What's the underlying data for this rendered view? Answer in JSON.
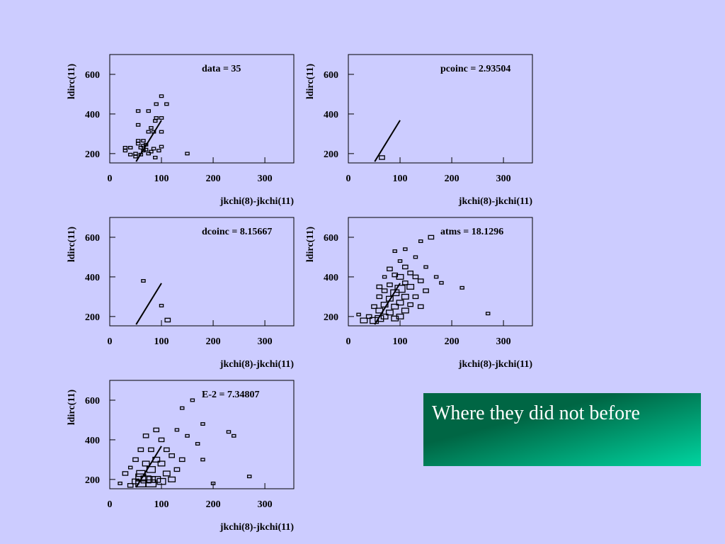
{
  "chart_data": [
    {
      "type": "scatter",
      "title": "data = 35",
      "xlabel": "jkchi(8)-jkchi(11)",
      "ylabel": "ldirc(11)",
      "xlim": [
        0,
        356
      ],
      "ylim": [
        153,
        700
      ],
      "xticks": [
        0,
        100,
        200,
        300
      ],
      "yticks": [
        200,
        400,
        600
      ],
      "line_x": [
        51,
        100
      ],
      "line_y": [
        160,
        368
      ],
      "x": [
        30,
        30,
        40,
        40,
        50,
        55,
        55,
        55,
        55,
        60,
        65,
        65,
        70,
        75,
        75,
        75,
        80,
        85,
        85,
        88,
        90,
        90,
        100,
        100,
        100,
        100,
        110,
        150,
        88,
        65,
        70,
        50,
        80,
        95,
        60
      ],
      "y": [
        230,
        215,
        230,
        195,
        200,
        265,
        250,
        345,
        415,
        195,
        265,
        240,
        220,
        310,
        200,
        415,
        210,
        225,
        310,
        365,
        380,
        450,
        310,
        380,
        235,
        490,
        450,
        200,
        180,
        215,
        245,
        185,
        330,
        215,
        230
      ],
      "sizes": [
        1,
        1,
        1,
        1,
        1,
        1,
        1,
        1,
        1,
        1,
        1,
        1,
        1,
        1,
        1,
        1,
        1,
        1,
        1,
        1,
        1,
        1,
        1,
        1,
        1,
        1,
        1,
        1,
        1,
        1,
        1,
        1,
        1,
        1,
        1
      ]
    },
    {
      "type": "scatter",
      "title": "pcoinc = 2.93504",
      "xlabel": "jkchi(8)-jkchi(11)",
      "ylabel": "ldirc(11)",
      "xlim": [
        0,
        356
      ],
      "ylim": [
        153,
        700
      ],
      "xticks": [
        0,
        100,
        200,
        300
      ],
      "yticks": [
        200,
        400,
        600
      ],
      "line_x": [
        51,
        100
      ],
      "line_y": [
        160,
        368
      ],
      "x": [
        65
      ],
      "y": [
        180
      ],
      "sizes": [
        2
      ]
    },
    {
      "type": "scatter",
      "title": "dcoinc = 8.15667",
      "xlabel": "jkchi(8)-jkchi(11)",
      "ylabel": "ldirc(11)",
      "xlim": [
        0,
        356
      ],
      "ylim": [
        153,
        700
      ],
      "xticks": [
        0,
        100,
        200,
        300
      ],
      "yticks": [
        200,
        400,
        600
      ],
      "line_x": [
        51,
        100
      ],
      "line_y": [
        160,
        368
      ],
      "x": [
        65,
        100,
        112
      ],
      "y": [
        380,
        255,
        182
      ],
      "sizes": [
        1,
        1,
        2
      ]
    },
    {
      "type": "scatter",
      "title": "atms = 18.1296",
      "xlabel": "jkchi(8)-jkchi(11)",
      "ylabel": "ldirc(11)",
      "xlim": [
        0,
        356
      ],
      "ylim": [
        153,
        700
      ],
      "xticks": [
        0,
        100,
        200,
        300
      ],
      "yticks": [
        200,
        400,
        600
      ],
      "line_x": [
        51,
        100
      ],
      "line_y": [
        160,
        368
      ],
      "x": [
        30,
        40,
        50,
        50,
        60,
        60,
        60,
        70,
        70,
        70,
        70,
        80,
        80,
        80,
        80,
        90,
        90,
        90,
        90,
        100,
        100,
        100,
        100,
        100,
        110,
        110,
        110,
        110,
        120,
        120,
        120,
        130,
        130,
        130,
        140,
        140,
        150,
        150,
        160,
        170,
        180,
        220,
        270,
        60,
        90,
        110,
        140,
        20
      ],
      "y": [
        180,
        200,
        180,
        250,
        190,
        230,
        300,
        200,
        260,
        330,
        400,
        220,
        290,
        360,
        440,
        190,
        250,
        320,
        410,
        200,
        270,
        340,
        400,
        480,
        230,
        300,
        370,
        450,
        260,
        350,
        420,
        300,
        400,
        500,
        250,
        380,
        330,
        450,
        600,
        400,
        370,
        345,
        215,
        350,
        530,
        540,
        580,
        210
      ],
      "sizes": [
        3,
        2,
        4,
        2,
        4,
        3,
        2,
        3,
        3,
        2,
        1,
        3,
        3,
        2,
        2,
        3,
        3,
        4,
        2,
        3,
        3,
        5,
        3,
        1,
        3,
        3,
        2,
        2,
        2,
        3,
        2,
        2,
        2,
        1,
        2,
        2,
        2,
        1,
        2,
        1,
        1,
        1,
        1,
        2,
        1,
        1,
        1,
        1
      ]
    },
    {
      "type": "scatter",
      "title": "E-2 = 7.34807",
      "xlabel": "jkchi(8)-jkchi(11)",
      "ylabel": "ldirc(11)",
      "xlim": [
        0,
        356
      ],
      "ylim": [
        153,
        700
      ],
      "xticks": [
        0,
        100,
        200,
        300
      ],
      "yticks": [
        200,
        400,
        600
      ],
      "line_x": [
        51,
        100
      ],
      "line_y": [
        160,
        368
      ],
      "x": [
        20,
        30,
        40,
        40,
        50,
        50,
        60,
        60,
        60,
        70,
        70,
        70,
        80,
        80,
        80,
        90,
        90,
        90,
        100,
        100,
        100,
        110,
        110,
        120,
        120,
        130,
        130,
        140,
        140,
        150,
        160,
        170,
        180,
        180,
        200,
        230,
        240,
        270,
        60,
        80
      ],
      "y": [
        180,
        230,
        170,
        260,
        190,
        300,
        180,
        230,
        350,
        200,
        280,
        420,
        180,
        250,
        350,
        200,
        300,
        450,
        190,
        280,
        400,
        230,
        350,
        200,
        320,
        250,
        450,
        300,
        560,
        420,
        600,
        380,
        300,
        480,
        180,
        440,
        420,
        215,
        210,
        200
      ],
      "sizes": [
        1,
        2,
        2,
        1,
        3,
        2,
        5,
        4,
        2,
        5,
        3,
        2,
        5,
        4,
        2,
        4,
        3,
        2,
        4,
        3,
        2,
        3,
        2,
        3,
        2,
        2,
        1,
        2,
        1,
        1,
        1,
        1,
        1,
        1,
        1,
        1,
        1,
        1,
        5,
        4
      ]
    }
  ],
  "caption": "Where they did not before"
}
